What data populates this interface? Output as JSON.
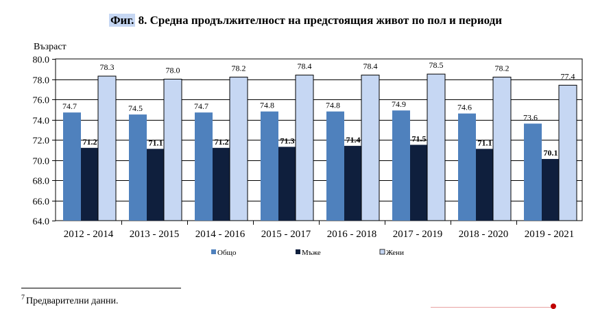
{
  "title": {
    "prefix": "Фиг.",
    "text": " 8. Средна продължителност на предстоящия живот по пол и периоди"
  },
  "footnote": {
    "marker": "7",
    "text": "Предварителни данни."
  },
  "colors": {
    "overall": "#4f81bd",
    "men": "#0f1f3d",
    "women": "#c6d7f3",
    "women_border": "#000000"
  },
  "chart_data": {
    "type": "bar",
    "title": "",
    "ylabel": "Възраст",
    "xlabel": "",
    "ylim": [
      64.0,
      80.0
    ],
    "ytick_step": 2.0,
    "yticks": [
      "64.0",
      "66.0",
      "68.0",
      "70.0",
      "72.0",
      "74.0",
      "76.0",
      "78.0",
      "80.0"
    ],
    "grid": true,
    "legend_position": "bottom",
    "categories": [
      "2012 - 2014",
      "2013 - 2015",
      "2014 - 2016",
      "2015 - 2017",
      "2016 - 2018",
      "2017 - 2019",
      "2018 - 2020",
      "2019 - 2021"
    ],
    "series": [
      {
        "name": "Общо",
        "values": [
          74.7,
          74.5,
          74.7,
          74.8,
          74.8,
          74.9,
          74.6,
          73.6
        ]
      },
      {
        "name": "Мъже",
        "values": [
          71.2,
          71.1,
          71.2,
          71.3,
          71.4,
          71.5,
          71.1,
          70.1
        ]
      },
      {
        "name": "Жени",
        "values": [
          78.3,
          78.0,
          78.2,
          78.4,
          78.4,
          78.5,
          78.2,
          77.4
        ]
      }
    ]
  }
}
